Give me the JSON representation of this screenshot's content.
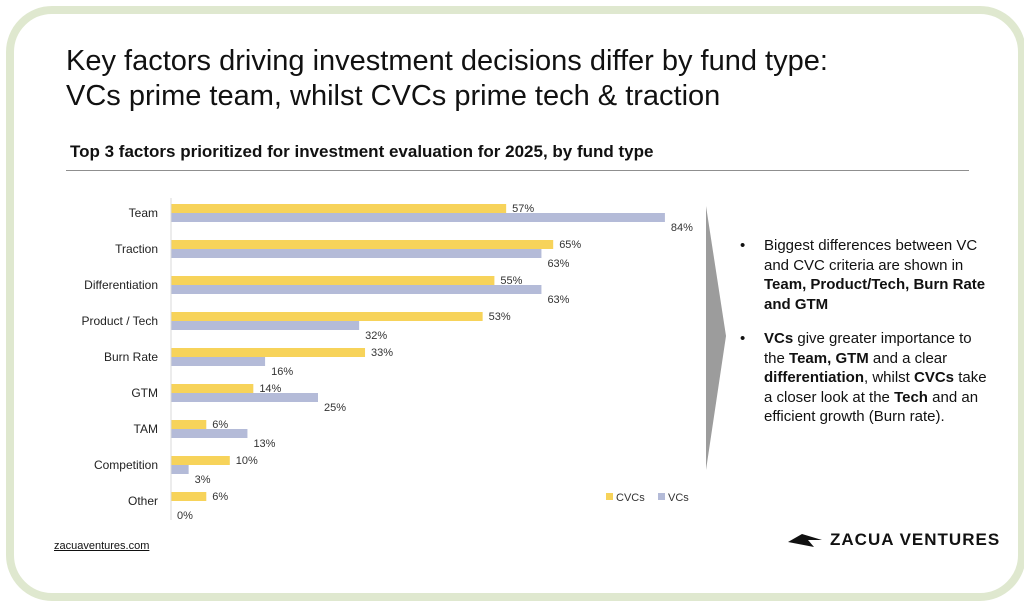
{
  "title_line1": "Key factors driving investment decisions differ by fund type:",
  "title_line2": "VCs prime team, whilst CVCs prime tech & traction",
  "colors": {
    "cvc": "#f7d35a",
    "vc": "#b4bbd8",
    "frame": "#dfe8cf"
  },
  "chart_data": {
    "type": "bar",
    "orientation": "horizontal",
    "title": "Top 3 factors prioritized for investment evaluation for 2025, by fund type",
    "categories": [
      "Team",
      "Traction",
      "Differentiation",
      "Product / Tech",
      "Burn Rate",
      "GTM",
      "TAM",
      "Competition",
      "Other"
    ],
    "series": [
      {
        "name": "CVCs",
        "color": "#f7d35a",
        "values": [
          57,
          65,
          55,
          53,
          33,
          14,
          6,
          10,
          6
        ],
        "labels": [
          "57%",
          "65%",
          "55%",
          "53%",
          "33%",
          "14%",
          "6%",
          "10%",
          "6%"
        ]
      },
      {
        "name": "VCs",
        "color": "#b4bbd8",
        "values": [
          84,
          63,
          63,
          32,
          16,
          25,
          13,
          3,
          0
        ],
        "labels": [
          "84%",
          "63%",
          "63%",
          "32%",
          "16%",
          "25%",
          "13%",
          "3%",
          "0%"
        ]
      }
    ],
    "xlim": [
      0,
      100
    ],
    "legend_position": "bottom-right",
    "grid": false
  },
  "notes": {
    "n1": {
      "t1": "Biggest differences between VC and CVC criteria are shown in ",
      "b1": "Team, Product/Tech, Burn Rate and GTM"
    },
    "n2": {
      "b1": "VCs",
      "t1": " give greater importance to the ",
      "b2": "Team, GTM",
      "t2": " and a clear ",
      "b3": "differentiation",
      "t3": ", whilst ",
      "b4": "CVCs",
      "t4": " take a closer look at the ",
      "b5": "Tech",
      "t5": " and an efficient growth (Burn rate)."
    }
  },
  "footer": {
    "link": "zacuaventures.com",
    "logo_text": "ZACUA VENTURES",
    "logo_icon": "zacua-logo-icon"
  }
}
